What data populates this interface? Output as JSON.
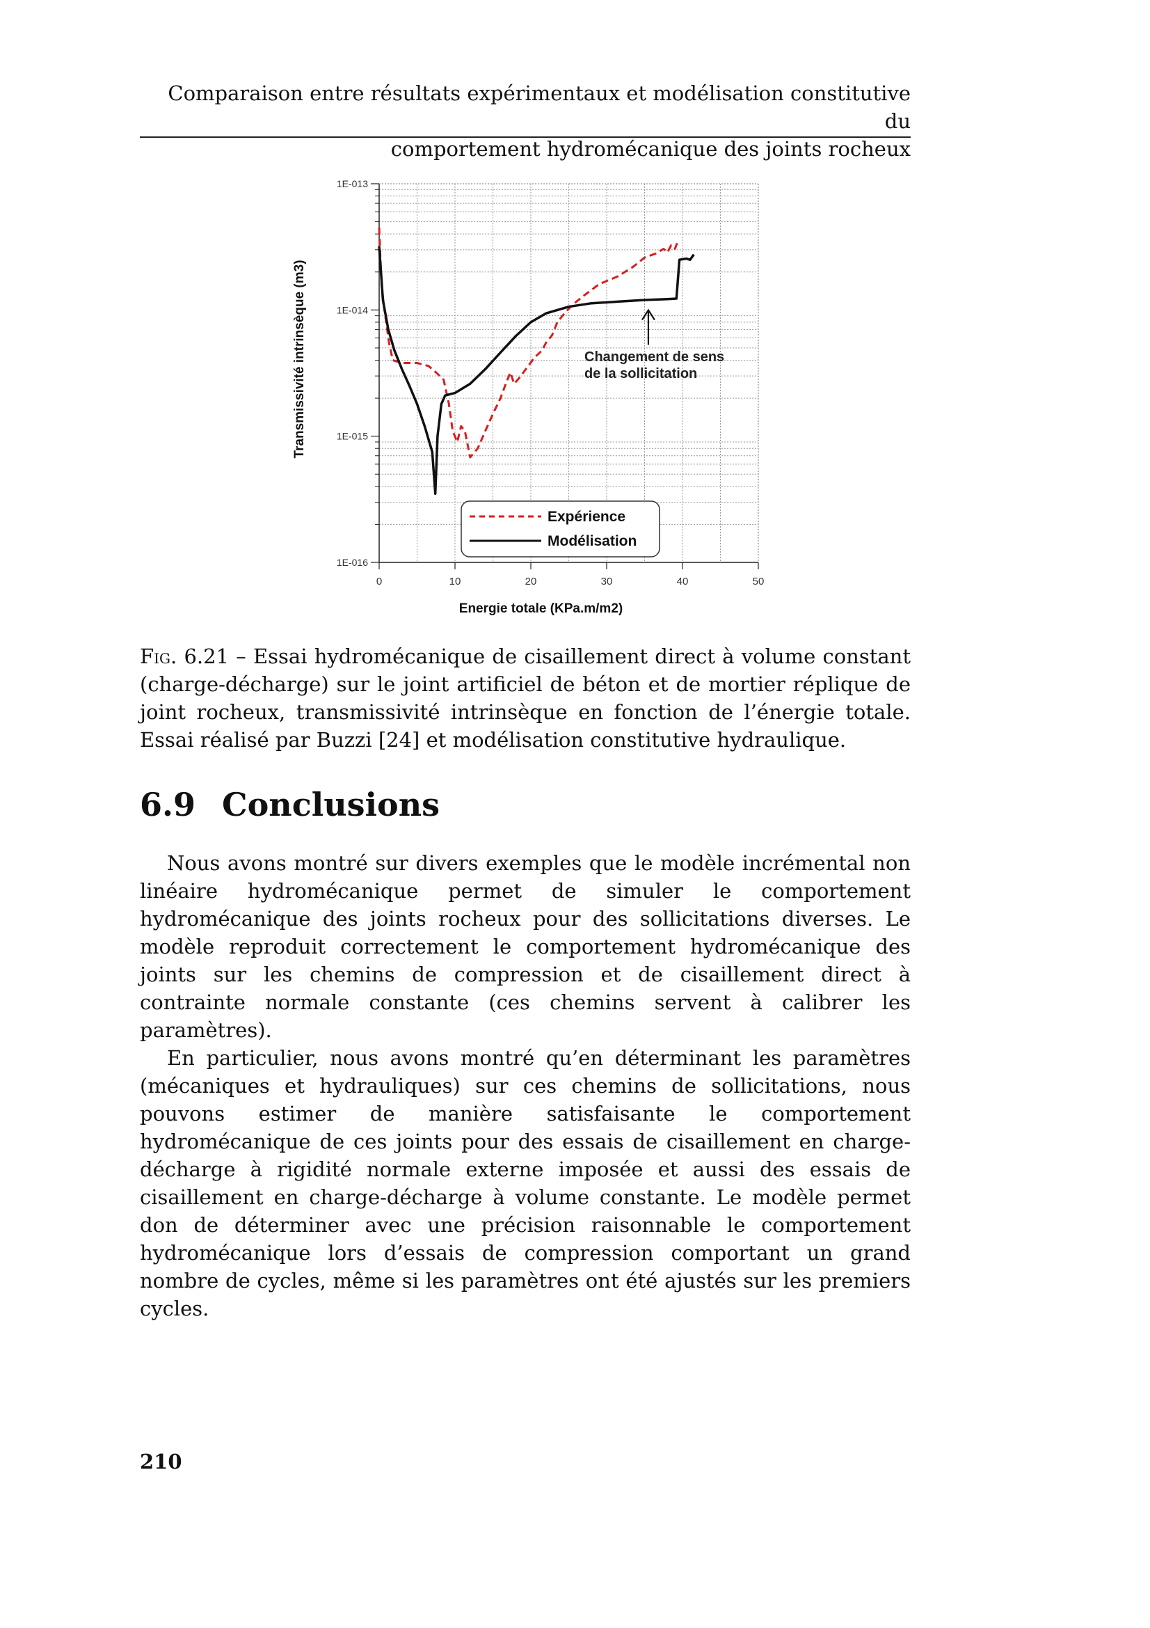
{
  "header": {
    "line1": "Comparaison entre résultats expérimentaux et modélisation constitutive du",
    "line2": "comportement hydromécanique des joints rocheux"
  },
  "chart_data": {
    "type": "line",
    "xlabel": "Energie totale (KPa.m/m2)",
    "ylabel": "Transmissivité intrinsèque (m3)",
    "xlim": [
      0,
      50
    ],
    "ylim": [
      1e-16,
      1e-13
    ],
    "yscale": "log",
    "xticks": [
      "0",
      "10",
      "20",
      "30",
      "40",
      "50"
    ],
    "yticks": [
      "1E-013",
      "1E-014",
      "1E-015",
      "1E-016"
    ],
    "grid": true,
    "legend_position": "bottom-center",
    "annotation": {
      "line1": "Changement de sens",
      "line2": "de la sollicitation",
      "arrow_x": 35.5,
      "arrow_y": 1.05e-14
    },
    "series": [
      {
        "name": "Expérience",
        "color": "#d61f1f",
        "dash": "dashed",
        "points": [
          [
            0,
            4.5e-14
          ],
          [
            0.3,
            1.6e-14
          ],
          [
            0.7,
            1e-14
          ],
          [
            1.3,
            5.5e-15
          ],
          [
            1.8,
            4e-15
          ],
          [
            3,
            3.8e-15
          ],
          [
            5,
            3.8e-15
          ],
          [
            6.5,
            3.6e-15
          ],
          [
            7.5,
            3.2e-15
          ],
          [
            8.5,
            2.8e-15
          ],
          [
            9.2,
            1.8e-15
          ],
          [
            9.7,
            1.1e-15
          ],
          [
            10.3,
            9e-16
          ],
          [
            10.8,
            1.2e-15
          ],
          [
            11.3,
            1.1e-15
          ],
          [
            12,
            6.8e-16
          ],
          [
            13,
            8e-16
          ],
          [
            14,
            1.1e-15
          ],
          [
            15,
            1.5e-15
          ],
          [
            16,
            2e-15
          ],
          [
            16.7,
            2.6e-15
          ],
          [
            17.3,
            3.2e-15
          ],
          [
            17.8,
            2.6e-15
          ],
          [
            18.5,
            2.9e-15
          ],
          [
            19.5,
            3.5e-15
          ],
          [
            20.5,
            4.2e-15
          ],
          [
            21.5,
            4.8e-15
          ],
          [
            22,
            5.5e-15
          ],
          [
            22.8,
            6.3e-15
          ],
          [
            23.5,
            8e-15
          ],
          [
            24.5,
            9.5e-15
          ],
          [
            25.5,
            1.1e-14
          ],
          [
            27,
            1.3e-14
          ],
          [
            29,
            1.6e-14
          ],
          [
            31.5,
            1.85e-14
          ],
          [
            33.5,
            2.2e-14
          ],
          [
            35,
            2.6e-14
          ],
          [
            36.5,
            2.8e-14
          ],
          [
            37.5,
            3.05e-14
          ],
          [
            38,
            2.85e-14
          ],
          [
            38.5,
            3.25e-14
          ],
          [
            39,
            3.05e-14
          ],
          [
            39.3,
            3.4e-14
          ]
        ]
      },
      {
        "name": "Modélisation",
        "color": "#111111",
        "dash": "solid",
        "points": [
          [
            0,
            3.2e-14
          ],
          [
            0.5,
            1.2e-14
          ],
          [
            1.2,
            7e-15
          ],
          [
            2,
            4.8e-15
          ],
          [
            3,
            3.4e-15
          ],
          [
            4,
            2.5e-15
          ],
          [
            5,
            1.8e-15
          ],
          [
            6,
            1.2e-15
          ],
          [
            7,
            7.5e-16
          ],
          [
            7.4,
            3.5e-16
          ],
          [
            7.7,
            1e-15
          ],
          [
            8.2,
            1.8e-15
          ],
          [
            8.7,
            2.1e-15
          ],
          [
            10,
            2.2e-15
          ],
          [
            12,
            2.6e-15
          ],
          [
            14,
            3.4e-15
          ],
          [
            16,
            4.6e-15
          ],
          [
            18,
            6.2e-15
          ],
          [
            20,
            8e-15
          ],
          [
            22,
            9.4e-15
          ],
          [
            25,
            1.06e-14
          ],
          [
            28,
            1.13e-14
          ],
          [
            32,
            1.17e-14
          ],
          [
            35,
            1.2e-14
          ],
          [
            38,
            1.22e-14
          ],
          [
            39.2,
            1.23e-14
          ],
          [
            39.6,
            2.5e-14
          ],
          [
            40.5,
            2.55e-14
          ],
          [
            41,
            2.5e-14
          ],
          [
            41.5,
            2.75e-14
          ]
        ]
      }
    ]
  },
  "figure": {
    "label": "Fig.",
    "number": "6.21",
    "text": "– Essai hydromécanique de cisaillement direct à volume constant (charge-décharge) sur le joint artificiel de béton et de mortier réplique de joint rocheux, transmissivité intrinsèque en fonction de l’énergie totale. Essai réalisé par Buzzi [24] et modélisation constitutive hydraulique."
  },
  "section": {
    "number": "6.9",
    "title": "Conclusions"
  },
  "paragraphs": [
    "Nous avons montré sur divers exemples que le modèle incrémental non linéaire hydromécanique permet de simuler le comportement hydromécanique des joints rocheux pour des sollicitations diverses. Le modèle reproduit correctement le comportement hydromécanique des joints sur les chemins de compression et de cisaillement direct à contrainte normale constante (ces chemins servent à calibrer les paramètres).",
    "En particulier, nous avons montré qu’en déterminant les paramètres (mécaniques et hydrauliques) sur ces chemins de sollicitations, nous pouvons estimer de manière satisfaisante le comportement hydromécanique de ces joints pour des essais de cisaillement en charge-décharge à rigidité normale externe imposée et aussi des essais de cisaillement en charge-décharge à volume constante. Le modèle permet don de déterminer avec une précision raisonnable le comportement hydromécanique lors d’essais de compression comportant un grand nombre de cycles, même si les paramètres ont été ajustés sur les premiers cycles."
  ],
  "page_number": "210"
}
